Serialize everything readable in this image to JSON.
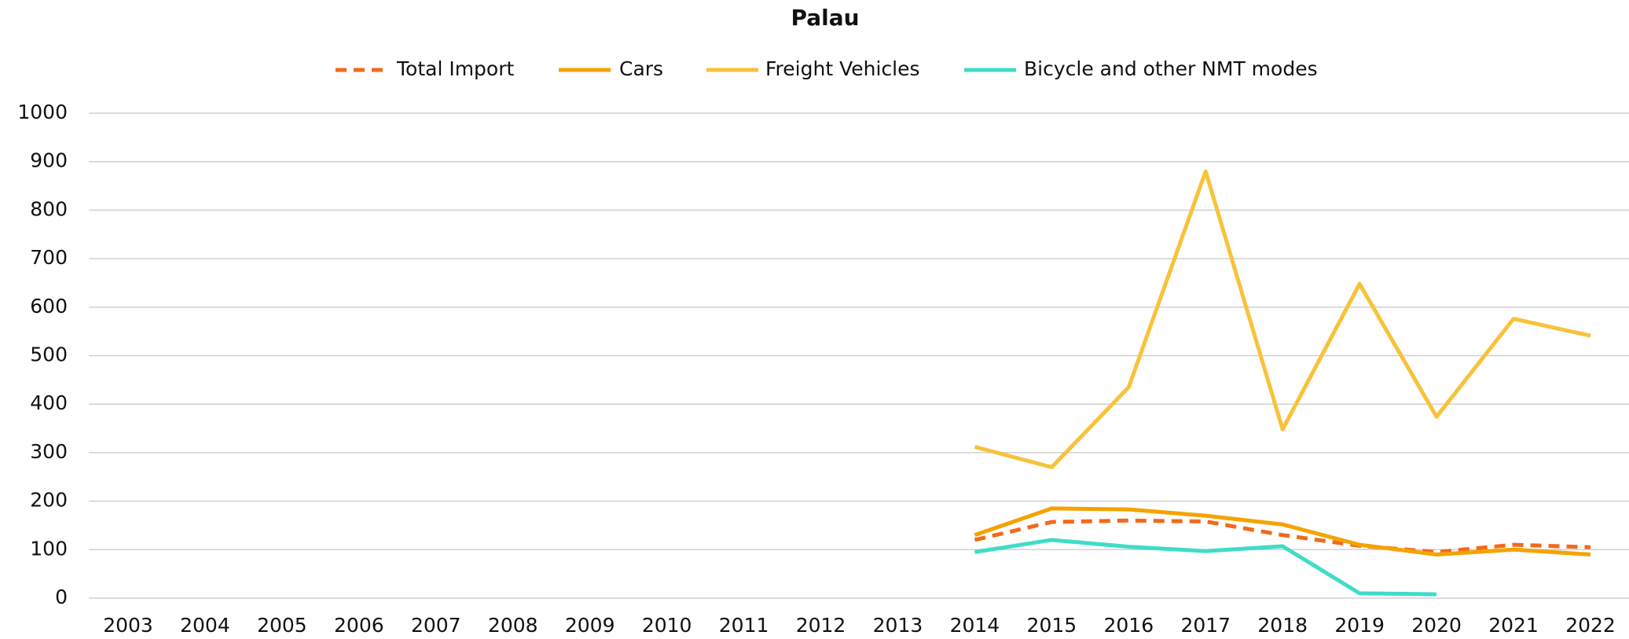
{
  "chart_data": {
    "type": "line",
    "title": "Palau",
    "categories": [
      "2003",
      "2004",
      "2005",
      "2006",
      "2007",
      "2008",
      "2009",
      "2010",
      "2011",
      "2012",
      "2013",
      "2014",
      "2015",
      "2016",
      "2017",
      "2018",
      "2019",
      "2020",
      "2021",
      "2022"
    ],
    "series": [
      {
        "name": "Total Import",
        "color": "#f26a1b",
        "style": "dashed",
        "values": [
          null,
          null,
          null,
          null,
          null,
          null,
          null,
          null,
          null,
          null,
          null,
          120,
          157,
          160,
          158,
          130,
          108,
          95,
          110,
          105
        ]
      },
      {
        "name": "Cars",
        "color": "#f5a300",
        "style": "solid",
        "values": [
          null,
          null,
          null,
          null,
          null,
          null,
          null,
          null,
          null,
          null,
          null,
          130,
          185,
          183,
          170,
          152,
          110,
          90,
          100,
          90
        ]
      },
      {
        "name": "Freight Vehicles",
        "color": "#f8c23a",
        "style": "solid",
        "values": [
          null,
          null,
          null,
          null,
          null,
          null,
          null,
          null,
          null,
          null,
          null,
          312,
          270,
          435,
          880,
          348,
          648,
          374,
          576,
          541
        ]
      },
      {
        "name": "Bicycle and other NMT modes",
        "color": "#3fdcc8",
        "style": "solid",
        "values": [
          null,
          null,
          null,
          null,
          null,
          null,
          null,
          null,
          null,
          null,
          null,
          95,
          120,
          106,
          97,
          107,
          10,
          8,
          null,
          null
        ]
      }
    ],
    "ylim": [
      0,
      1000
    ],
    "yticks": [
      0,
      100,
      200,
      300,
      400,
      500,
      600,
      700,
      800,
      900,
      1000
    ],
    "grid": true,
    "legend": "top"
  }
}
